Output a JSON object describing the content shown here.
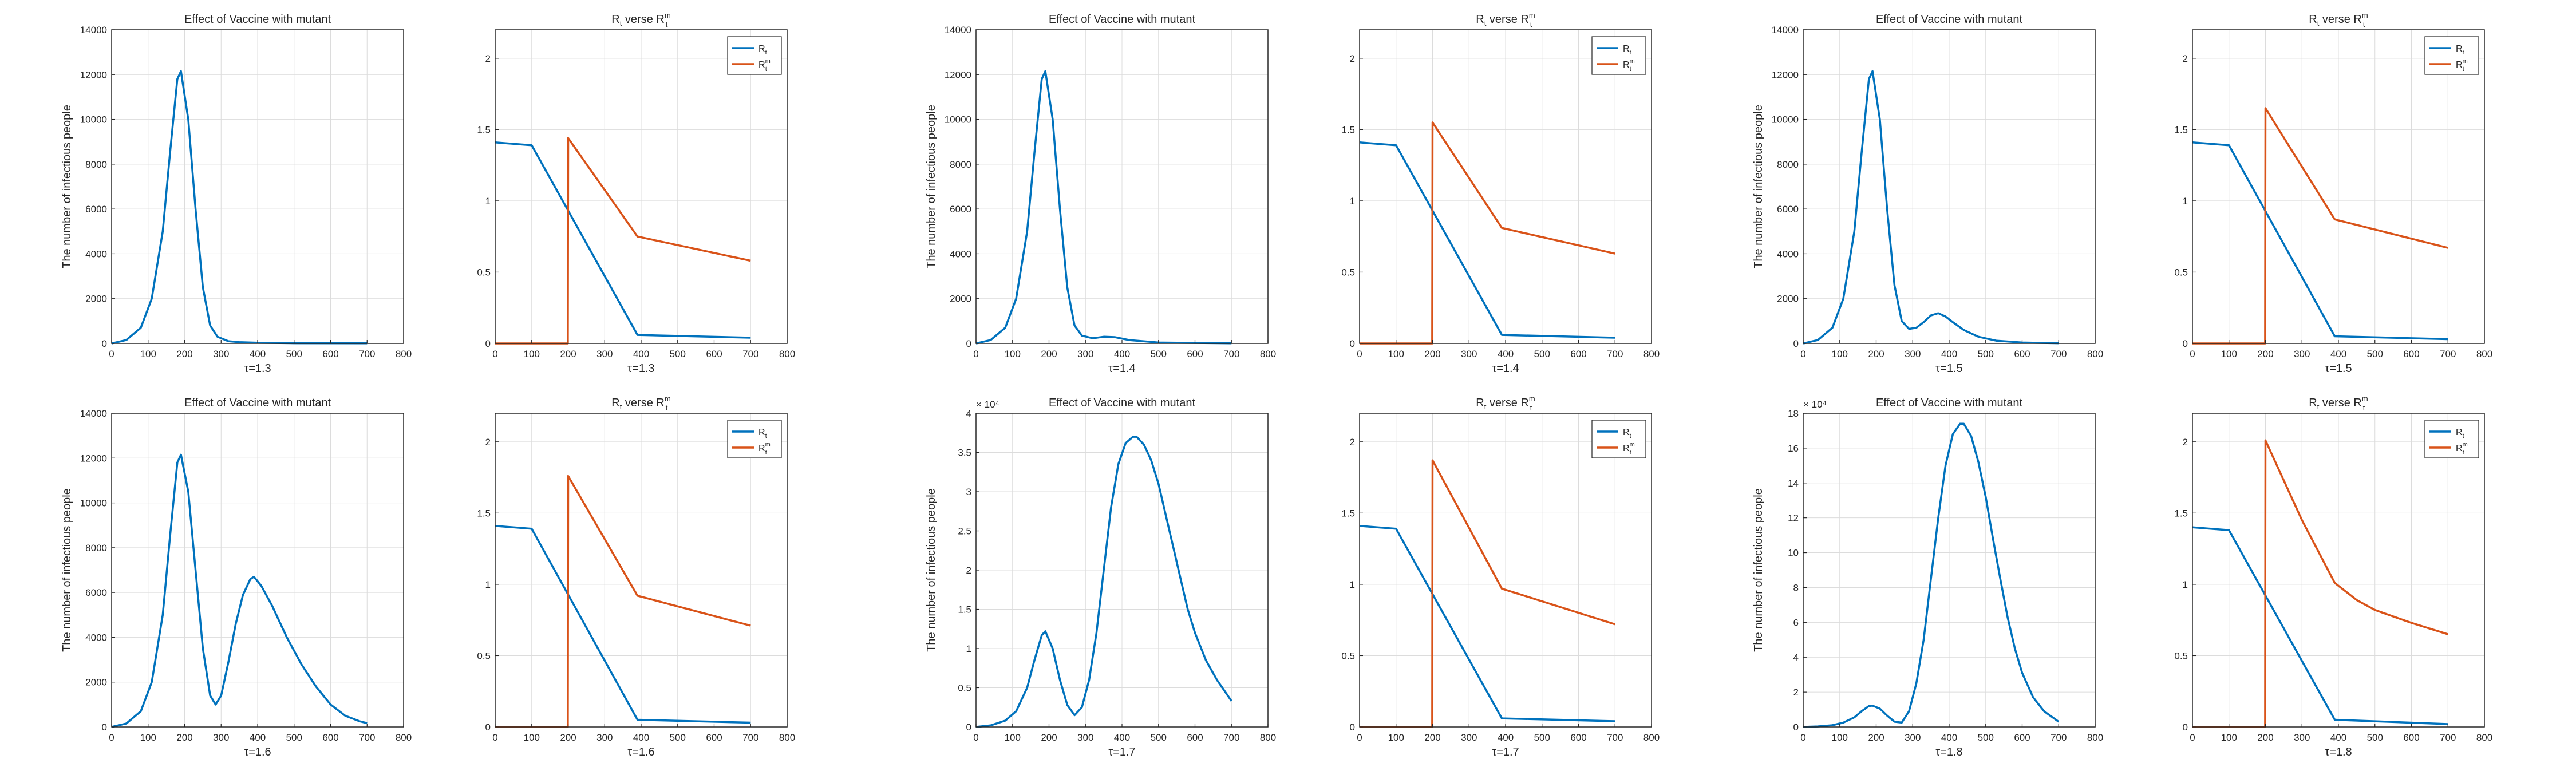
{
  "colors": {
    "series1": "#0072BD",
    "series2": "#D95319",
    "grid": "#dcdcdc",
    "axis": "#262626"
  },
  "chart_data": [
    {
      "type": "line",
      "title": "Effect of Vaccine with mutant",
      "xlabel": "τ=1.3",
      "ylabel": "The number of infectious people",
      "xlim": [
        0,
        800
      ],
      "ylim": [
        0,
        14000
      ],
      "xticks": [
        0,
        100,
        200,
        300,
        400,
        500,
        600,
        700,
        800
      ],
      "yticks": [
        0,
        2000,
        4000,
        6000,
        8000,
        10000,
        12000,
        14000
      ],
      "yscale_label": "",
      "grid": true,
      "series": [
        {
          "color": "series1",
          "x": [
            0,
            40,
            80,
            110,
            140,
            160,
            180,
            190,
            210,
            230,
            250,
            270,
            290,
            320,
            350,
            400,
            500,
            700
          ],
          "y": [
            0,
            150,
            700,
            2000,
            5000,
            8500,
            11800,
            12150,
            10000,
            6000,
            2500,
            800,
            300,
            100,
            60,
            30,
            10,
            5
          ]
        }
      ]
    },
    {
      "type": "line",
      "title": "R",
      "title_sub": "t",
      "title_mid": " verse R",
      "title_sup": "m",
      "title_sub2": "t",
      "xlabel": "τ=1.3",
      "ylabel": "",
      "xlim": [
        0,
        800
      ],
      "ylim": [
        0,
        2.2
      ],
      "xticks": [
        0,
        100,
        200,
        300,
        400,
        500,
        600,
        700,
        800
      ],
      "yticks": [
        0,
        0.5,
        1,
        1.5,
        2
      ],
      "grid": true,
      "legend": "top-right",
      "series": [
        {
          "name": "R",
          "name_sub": "t",
          "color": "series1",
          "x": [
            0,
            100,
            390,
            700
          ],
          "y": [
            1.41,
            1.39,
            0.06,
            0.04
          ]
        },
        {
          "name": "R",
          "name_sub": "t",
          "name_sup": "m",
          "color": "series2",
          "x": [
            0,
            199,
            200,
            390,
            700
          ],
          "y": [
            0,
            0,
            1.44,
            0.75,
            0.58
          ]
        }
      ]
    },
    {
      "type": "line",
      "title": "Effect of Vaccine with mutant",
      "xlabel": "τ=1.4",
      "ylabel": "The number of infectious people",
      "xlim": [
        0,
        800
      ],
      "ylim": [
        0,
        14000
      ],
      "xticks": [
        0,
        100,
        200,
        300,
        400,
        500,
        600,
        700,
        800
      ],
      "yticks": [
        0,
        2000,
        4000,
        6000,
        8000,
        10000,
        12000,
        14000
      ],
      "yscale_label": "",
      "grid": true,
      "series": [
        {
          "color": "series1",
          "x": [
            0,
            40,
            80,
            110,
            140,
            160,
            180,
            190,
            210,
            230,
            250,
            270,
            290,
            320,
            350,
            380,
            420,
            500,
            700
          ],
          "y": [
            0,
            150,
            700,
            2000,
            5000,
            8500,
            11800,
            12150,
            10000,
            6000,
            2500,
            800,
            350,
            230,
            300,
            280,
            150,
            40,
            5
          ]
        }
      ]
    },
    {
      "type": "line",
      "title": "R",
      "title_sub": "t",
      "title_mid": " verse R",
      "title_sup": "m",
      "title_sub2": "t",
      "xlabel": "τ=1.4",
      "ylabel": "",
      "xlim": [
        0,
        800
      ],
      "ylim": [
        0,
        2.2
      ],
      "xticks": [
        0,
        100,
        200,
        300,
        400,
        500,
        600,
        700,
        800
      ],
      "yticks": [
        0,
        0.5,
        1,
        1.5,
        2
      ],
      "grid": true,
      "legend": "top-right",
      "series": [
        {
          "name": "R",
          "name_sub": "t",
          "color": "series1",
          "x": [
            0,
            100,
            390,
            700
          ],
          "y": [
            1.41,
            1.39,
            0.06,
            0.04
          ]
        },
        {
          "name": "R",
          "name_sub": "t",
          "name_sup": "m",
          "color": "series2",
          "x": [
            0,
            199,
            200,
            390,
            700
          ],
          "y": [
            0,
            0,
            1.55,
            0.81,
            0.63
          ]
        }
      ]
    },
    {
      "type": "line",
      "title": "Effect of Vaccine with mutant",
      "xlabel": "τ=1.5",
      "ylabel": "The number of infectious people",
      "xlim": [
        0,
        800
      ],
      "ylim": [
        0,
        14000
      ],
      "xticks": [
        0,
        100,
        200,
        300,
        400,
        500,
        600,
        700,
        800
      ],
      "yticks": [
        0,
        2000,
        4000,
        6000,
        8000,
        10000,
        12000,
        14000
      ],
      "yscale_label": "",
      "grid": true,
      "series": [
        {
          "color": "series1",
          "x": [
            0,
            40,
            80,
            110,
            140,
            160,
            180,
            190,
            210,
            230,
            250,
            270,
            290,
            310,
            330,
            350,
            370,
            390,
            410,
            440,
            480,
            530,
            600,
            700
          ],
          "y": [
            0,
            150,
            700,
            2000,
            5000,
            8500,
            11800,
            12150,
            10000,
            6000,
            2600,
            1000,
            650,
            700,
            950,
            1250,
            1350,
            1200,
            950,
            600,
            300,
            120,
            40,
            10
          ]
        }
      ]
    },
    {
      "type": "line",
      "title": "R",
      "title_sub": "t",
      "title_mid": " verse R",
      "title_sup": "m",
      "title_sub2": "t",
      "xlabel": "τ=1.5",
      "ylabel": "",
      "xlim": [
        0,
        800
      ],
      "ylim": [
        0,
        2.2
      ],
      "xticks": [
        0,
        100,
        200,
        300,
        400,
        500,
        600,
        700,
        800
      ],
      "yticks": [
        0,
        0.5,
        1,
        1.5,
        2
      ],
      "grid": true,
      "legend": "top-right",
      "series": [
        {
          "name": "R",
          "name_sub": "t",
          "color": "series1",
          "x": [
            0,
            100,
            390,
            700
          ],
          "y": [
            1.41,
            1.39,
            0.05,
            0.03
          ]
        },
        {
          "name": "R",
          "name_sub": "t",
          "name_sup": "m",
          "color": "series2",
          "x": [
            0,
            199,
            200,
            390,
            700
          ],
          "y": [
            0,
            0,
            1.65,
            0.87,
            0.67
          ]
        }
      ]
    },
    {
      "type": "line",
      "title": "Effect of Vaccine with mutant",
      "xlabel": "τ=1.6",
      "ylabel": "The number of infectious people",
      "xlim": [
        0,
        800
      ],
      "ylim": [
        0,
        14000
      ],
      "xticks": [
        0,
        100,
        200,
        300,
        400,
        500,
        600,
        700,
        800
      ],
      "yticks": [
        0,
        2000,
        4000,
        6000,
        8000,
        10000,
        12000,
        14000
      ],
      "yscale_label": "",
      "grid": true,
      "series": [
        {
          "color": "series1",
          "x": [
            0,
            40,
            80,
            110,
            140,
            160,
            180,
            190,
            210,
            230,
            250,
            270,
            285,
            300,
            320,
            340,
            360,
            380,
            390,
            410,
            440,
            480,
            520,
            560,
            600,
            640,
            680,
            700
          ],
          "y": [
            0,
            150,
            700,
            2000,
            5000,
            8500,
            11800,
            12150,
            10500,
            7000,
            3500,
            1400,
            1000,
            1400,
            2900,
            4600,
            5900,
            6600,
            6700,
            6300,
            5400,
            4000,
            2800,
            1800,
            1000,
            500,
            250,
            170
          ]
        }
      ]
    },
    {
      "type": "line",
      "title": "R",
      "title_sub": "t",
      "title_mid": " verse R",
      "title_sup": "m",
      "title_sub2": "t",
      "xlabel": "τ=1.6",
      "ylabel": "",
      "xlim": [
        0,
        800
      ],
      "ylim": [
        0,
        2.2
      ],
      "xticks": [
        0,
        100,
        200,
        300,
        400,
        500,
        600,
        700,
        800
      ],
      "yticks": [
        0,
        0.5,
        1,
        1.5,
        2
      ],
      "grid": true,
      "legend": "top-right",
      "series": [
        {
          "name": "R",
          "name_sub": "t",
          "color": "series1",
          "x": [
            0,
            100,
            390,
            700
          ],
          "y": [
            1.41,
            1.39,
            0.05,
            0.03
          ]
        },
        {
          "name": "R",
          "name_sub": "t",
          "name_sup": "m",
          "color": "series2",
          "x": [
            0,
            199,
            200,
            390,
            700
          ],
          "y": [
            0,
            0,
            1.76,
            0.92,
            0.71
          ]
        }
      ]
    },
    {
      "type": "line",
      "title": "Effect of Vaccine with mutant",
      "xlabel": "τ=1.7",
      "ylabel": "The number of infectious people",
      "xlim": [
        0,
        800
      ],
      "ylim": [
        0,
        4
      ],
      "xticks": [
        0,
        100,
        200,
        300,
        400,
        500,
        600,
        700,
        800
      ],
      "yticks": [
        0,
        0.5,
        1,
        1.5,
        2,
        2.5,
        3,
        3.5,
        4
      ],
      "yscale_label": "× 10⁴",
      "grid": true,
      "series": [
        {
          "color": "series1",
          "x": [
            0,
            40,
            80,
            110,
            140,
            160,
            180,
            190,
            210,
            230,
            250,
            270,
            290,
            310,
            330,
            350,
            370,
            390,
            410,
            430,
            440,
            460,
            480,
            500,
            520,
            540,
            560,
            580,
            600,
            630,
            660,
            700
          ],
          "y": [
            0,
            0.02,
            0.08,
            0.2,
            0.5,
            0.85,
            1.17,
            1.22,
            1.0,
            0.6,
            0.28,
            0.15,
            0.25,
            0.6,
            1.2,
            2.0,
            2.8,
            3.35,
            3.62,
            3.7,
            3.7,
            3.6,
            3.4,
            3.1,
            2.7,
            2.3,
            1.9,
            1.5,
            1.2,
            0.85,
            0.6,
            0.33
          ]
        }
      ]
    },
    {
      "type": "line",
      "title": "R",
      "title_sub": "t",
      "title_mid": " verse R",
      "title_sup": "m",
      "title_sub2": "t",
      "xlabel": "τ=1.7",
      "ylabel": "",
      "xlim": [
        0,
        800
      ],
      "ylim": [
        0,
        2.2
      ],
      "xticks": [
        0,
        100,
        200,
        300,
        400,
        500,
        600,
        700,
        800
      ],
      "yticks": [
        0,
        0.5,
        1,
        1.5,
        2
      ],
      "grid": true,
      "legend": "top-right",
      "series": [
        {
          "name": "R",
          "name_sub": "t",
          "color": "series1",
          "x": [
            0,
            100,
            390,
            700
          ],
          "y": [
            1.41,
            1.39,
            0.06,
            0.04
          ]
        },
        {
          "name": "R",
          "name_sub": "t",
          "name_sup": "m",
          "color": "series2",
          "x": [
            0,
            199,
            200,
            390,
            700
          ],
          "y": [
            0,
            0,
            1.87,
            0.97,
            0.72
          ]
        }
      ]
    },
    {
      "type": "line",
      "title": "Effect of Vaccine with mutant",
      "xlabel": "τ=1.8",
      "ylabel": "The number of infectious people",
      "xlim": [
        0,
        800
      ],
      "ylim": [
        0,
        18
      ],
      "xticks": [
        0,
        100,
        200,
        300,
        400,
        500,
        600,
        700,
        800
      ],
      "yticks": [
        0,
        2,
        4,
        6,
        8,
        10,
        12,
        14,
        16,
        18
      ],
      "yscale_label": "× 10⁴",
      "grid": true,
      "series": [
        {
          "color": "series1",
          "x": [
            0,
            40,
            80,
            110,
            140,
            160,
            180,
            190,
            210,
            230,
            250,
            270,
            290,
            310,
            330,
            350,
            370,
            390,
            410,
            430,
            440,
            460,
            480,
            500,
            520,
            540,
            560,
            580,
            600,
            630,
            660,
            700
          ],
          "y": [
            0,
            0.03,
            0.1,
            0.25,
            0.55,
            0.9,
            1.2,
            1.22,
            1.05,
            0.65,
            0.3,
            0.25,
            0.9,
            2.5,
            5.0,
            8.5,
            12.0,
            15.0,
            16.8,
            17.4,
            17.4,
            16.7,
            15.2,
            13.2,
            10.8,
            8.5,
            6.3,
            4.5,
            3.1,
            1.7,
            0.9,
            0.3
          ]
        }
      ]
    },
    {
      "type": "line",
      "title": "R",
      "title_sub": "t",
      "title_mid": " verse R",
      "title_sup": "m",
      "title_sub2": "t",
      "xlabel": "τ=1.8",
      "ylabel": "",
      "xlim": [
        0,
        800
      ],
      "ylim": [
        0,
        2.2
      ],
      "xticks": [
        0,
        100,
        200,
        300,
        400,
        500,
        600,
        700,
        800
      ],
      "yticks": [
        0,
        0.5,
        1,
        1.5,
        2
      ],
      "grid": true,
      "legend": "top-right",
      "series": [
        {
          "name": "R",
          "name_sub": "t",
          "color": "series1",
          "x": [
            0,
            100,
            390,
            700
          ],
          "y": [
            1.4,
            1.38,
            0.05,
            0.02
          ]
        },
        {
          "name": "R",
          "name_sub": "t",
          "name_sup": "m",
          "color": "series2",
          "x": [
            0,
            199,
            200,
            300,
            390,
            450,
            500,
            600,
            700
          ],
          "y": [
            0,
            0,
            2.01,
            1.45,
            1.01,
            0.89,
            0.82,
            0.73,
            0.65
          ]
        }
      ]
    }
  ]
}
